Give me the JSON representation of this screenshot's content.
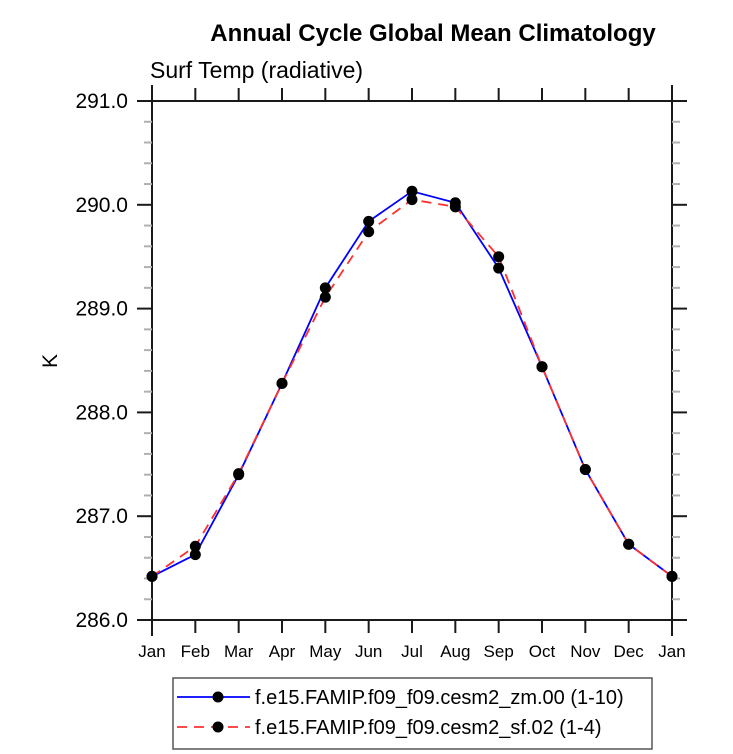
{
  "chart_data": {
    "type": "line",
    "title": "Annual Cycle Global Mean Climatology",
    "subtitle": "Surf Temp (radiative)",
    "ylabel": "K",
    "xlabel": "",
    "x_categories": [
      "Jan",
      "Feb",
      "Mar",
      "Apr",
      "May",
      "Jun",
      "Jul",
      "Aug",
      "Sep",
      "Oct",
      "Nov",
      "Dec",
      "Jan"
    ],
    "ylim": [
      286.0,
      291.0
    ],
    "ytick_labels": [
      "286.0",
      "287.0",
      "288.0",
      "289.0",
      "290.0",
      "291.0"
    ],
    "ytick_major_step": 1.0,
    "ytick_minor_step": 0.2,
    "grid": false,
    "legend_position": "bottom",
    "series": [
      {
        "name": "f.e15.FAMIP.f09_f09.cesm2_zm.00 (1-10)",
        "color": "#0000ff",
        "line_style": "solid",
        "marker": "filled-circle",
        "marker_color": "#000000",
        "values": [
          286.42,
          286.63,
          287.4,
          288.28,
          289.2,
          289.84,
          290.13,
          290.02,
          289.39,
          288.44,
          287.45,
          286.73,
          286.42
        ]
      },
      {
        "name": "f.e15.FAMIP.f09_f09.cesm2_sf.02 (1-4)",
        "color": "#ff3030",
        "line_style": "dashed",
        "marker": "filled-circle",
        "marker_color": "#000000",
        "values": [
          286.42,
          286.71,
          287.41,
          288.28,
          289.11,
          289.74,
          290.05,
          289.98,
          289.5,
          288.44,
          287.45,
          286.73,
          286.42
        ]
      }
    ],
    "colors": {
      "axis": "#1a1a1a",
      "minor_tick": "#b0b0b0",
      "text": "#000000",
      "legend_border": "#555555",
      "background": "#ffffff"
    }
  }
}
